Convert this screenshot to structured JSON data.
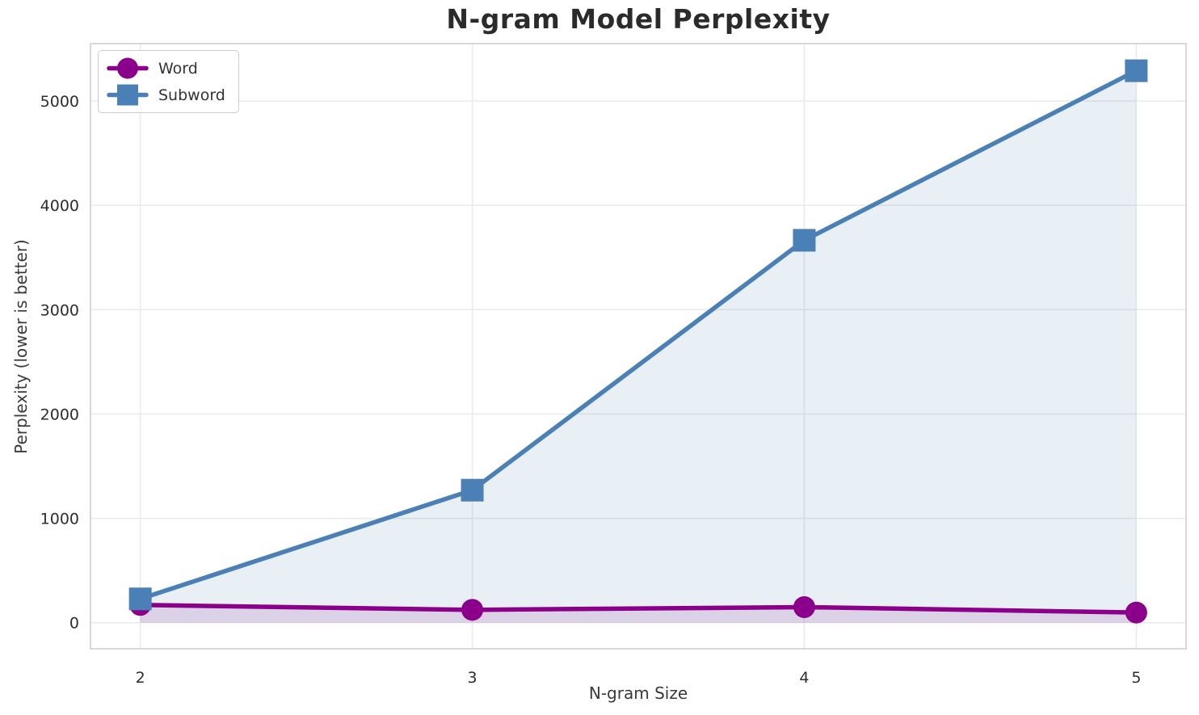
{
  "chart_data": {
    "type": "line",
    "title": "N-gram Model Perplexity",
    "xlabel": "N-gram Size",
    "ylabel": "Perplexity (lower is better)",
    "x": [
      2,
      3,
      4,
      5
    ],
    "series": [
      {
        "name": "Word",
        "marker": "circle",
        "color": "#8A008A",
        "values": [
          170,
          123,
          149,
          97
        ]
      },
      {
        "name": "Subword",
        "marker": "square",
        "color": "#4A80B5",
        "values": [
          228,
          1270,
          3665,
          5290
        ]
      }
    ],
    "x_ticks": [
      "2",
      "3",
      "4",
      "5"
    ],
    "x_tick_values": [
      2,
      3,
      4,
      5
    ],
    "y_ticks": [
      "0",
      "1000",
      "2000",
      "3000",
      "4000",
      "5000"
    ],
    "y_tick_values": [
      0,
      1000,
      2000,
      3000,
      4000,
      5000
    ],
    "xlim": [
      1.85,
      5.15
    ],
    "ylim": [
      -250,
      5550
    ],
    "grid": true,
    "area_fill_to_zero": true,
    "fill_alpha": 0.13,
    "legend_position": "upper-left",
    "colors": {
      "grid": "#eaeaea",
      "border": "#d8d8d8",
      "background": "#ffffff",
      "text": "#2b2b2b"
    }
  }
}
